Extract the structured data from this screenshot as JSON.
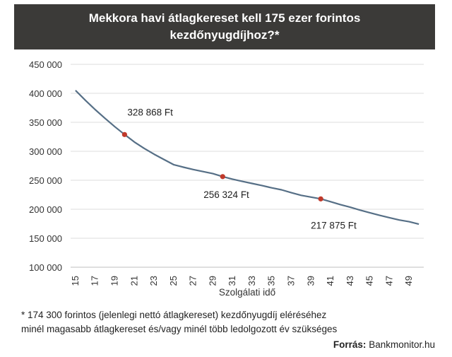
{
  "title_line1": "Mekkora havi átlagkereset  kell 175 ezer forintos",
  "title_line2": "kezdőnyugdíjhoz?*",
  "footnote_line1": "* 174 300 forintos (jelenlegi nettó átlagkereset) kezdőnyugdíj eléréséhez",
  "footnote_line2": "minél magasabb átlagkereset és/vagy minél több ledolgozott év szükséges",
  "source_label": "Forrás:",
  "source_value": "Bankmonitor.hu",
  "colors": {
    "line": "#566f86",
    "marker": "#c0392b",
    "title_bg": "#3b3a38"
  },
  "chart_data": {
    "type": "line",
    "title": "Mekkora havi átlagkereset  kell 175 ezer forintos kezdőnyugdíjhoz?*",
    "xlabel": "Szolgálati idő",
    "ylabel": "",
    "ylim": [
      100000,
      450000
    ],
    "yticks": [
      100000,
      150000,
      200000,
      250000,
      300000,
      350000,
      400000,
      450000
    ],
    "ytick_labels": [
      "100 000",
      "150 000",
      "200 000",
      "250 000",
      "300 000",
      "350 000",
      "400 000",
      "450 000"
    ],
    "xlim": [
      15,
      50
    ],
    "xticks": [
      15,
      17,
      19,
      21,
      23,
      25,
      27,
      29,
      31,
      33,
      35,
      37,
      39,
      41,
      43,
      45,
      47,
      49
    ],
    "grid": "horizontal",
    "x": [
      15,
      16,
      17,
      18,
      19,
      20,
      21,
      22,
      23,
      24,
      25,
      26,
      27,
      28,
      29,
      30,
      31,
      32,
      33,
      34,
      35,
      36,
      37,
      38,
      39,
      40,
      41,
      42,
      43,
      44,
      45,
      46,
      47,
      48,
      49,
      50
    ],
    "y": [
      405000,
      388000,
      372000,
      357000,
      342500,
      328868,
      316000,
      305000,
      295000,
      286000,
      277000,
      272500,
      268500,
      265000,
      261500,
      256324,
      252000,
      248000,
      244500,
      241000,
      237000,
      233500,
      228500,
      224000,
      221000,
      217875,
      213000,
      208000,
      203500,
      198500,
      194000,
      189500,
      185500,
      181500,
      178500,
      174300
    ],
    "annotations": [
      {
        "x": 20,
        "y": 328868,
        "label": "328 868 Ft"
      },
      {
        "x": 30,
        "y": 256324,
        "label": "256 324 Ft"
      },
      {
        "x": 40,
        "y": 217875,
        "label": "217 875 Ft"
      }
    ]
  }
}
